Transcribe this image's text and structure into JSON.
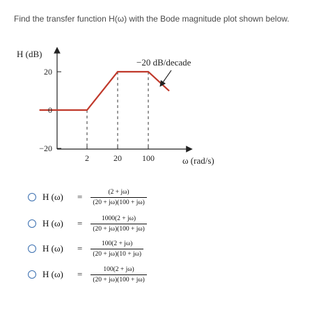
{
  "question": {
    "text": "Find the transfer function H(ω) with the Bode magnitude plot shown below."
  },
  "colors": {
    "plot_line": "#c0392b",
    "axis": "#222222",
    "radio_border": "#3a6fb0"
  },
  "chart_data": {
    "type": "line",
    "ylabel": "H (dB)",
    "xlabel": "ω (rad/s)",
    "x_scale": "log",
    "y_ticks": [
      20,
      0,
      -20
    ],
    "x_ticks": [
      2,
      20,
      100
    ],
    "annotation": "−20 dB/decade",
    "series": [
      {
        "points": [
          {
            "x": 0.3,
            "y": 0
          },
          {
            "x": 2,
            "y": 0
          },
          {
            "x": 20,
            "y": 20
          },
          {
            "x": 100,
            "y": 20
          },
          {
            "x": 300,
            "y": 10
          }
        ]
      }
    ]
  },
  "options": [
    {
      "lhs": "H (ω)",
      "eq": "=",
      "numerator": "(2 + jω)",
      "denominator": "(20 + jω)(100 + jω)"
    },
    {
      "lhs": "H (ω)",
      "eq": "=",
      "numerator": "1000(2 + jω)",
      "denominator": "(20 + jω)(100 + jω)"
    },
    {
      "lhs": "H (ω)",
      "eq": "=",
      "numerator": "100(2 + jω)",
      "denominator": "(20 + jω)(10 + jω)"
    },
    {
      "lhs": "H (ω)",
      "eq": "=",
      "numerator": "100(2 + jω)",
      "denominator": "(20 + jω)(100 + jω)"
    }
  ]
}
